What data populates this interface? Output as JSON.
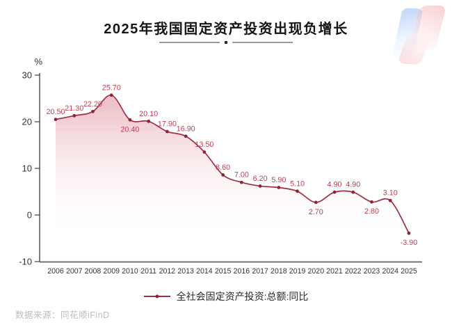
{
  "title": "2025年我国固定资产投资出现负增长",
  "source": "数据来源：同花顺iFinD",
  "legend": {
    "label": "全社会固定资产投资:总额:同比",
    "marker_color": "#9c3043"
  },
  "chart_data": {
    "type": "area",
    "title": "2025年我国固定资产投资出现负增长",
    "xlabel": "",
    "ylabel": "%",
    "categories": [
      "2006",
      "2007",
      "2008",
      "2009",
      "2010",
      "2011",
      "2012",
      "2013",
      "2014",
      "2015",
      "2016",
      "2017",
      "2018",
      "2019",
      "2020",
      "2021",
      "2022",
      "2023",
      "2024",
      "2025"
    ],
    "values": [
      20.5,
      21.3,
      22.2,
      25.7,
      20.4,
      20.1,
      17.9,
      16.9,
      13.5,
      8.6,
      7.0,
      6.2,
      5.9,
      5.1,
      2.7,
      4.9,
      4.9,
      2.8,
      3.1,
      -3.9
    ],
    "point_labels": [
      "20.50",
      "21.30",
      "22.20",
      "25.70",
      "20.40",
      "20.10",
      "17.90",
      "16.90",
      "13.50",
      "8.60",
      "7.00",
      "6.20",
      "5.90",
      "5.10",
      "2.70",
      "4.90",
      "4.90",
      "2.80",
      "3.10",
      "-3.90"
    ],
    "labels_below_indices": [
      4,
      14,
      17,
      19
    ],
    "yticks": [
      "30",
      "20",
      "10",
      "0",
      "-10"
    ],
    "ylim": [
      -10,
      30
    ],
    "grid": false,
    "legend_entries": [
      "全社会固定资产投资:总额:同比"
    ],
    "legend_position": "bottom",
    "series_name": "全社会固定资产投资:总额:同比",
    "colors": {
      "line": "#9c3043",
      "marker": "#8e2537",
      "point_label": "#c24052",
      "area_top": "#e08f9b",
      "axis": "#4a4a4a",
      "tick_text": "#333333"
    }
  }
}
